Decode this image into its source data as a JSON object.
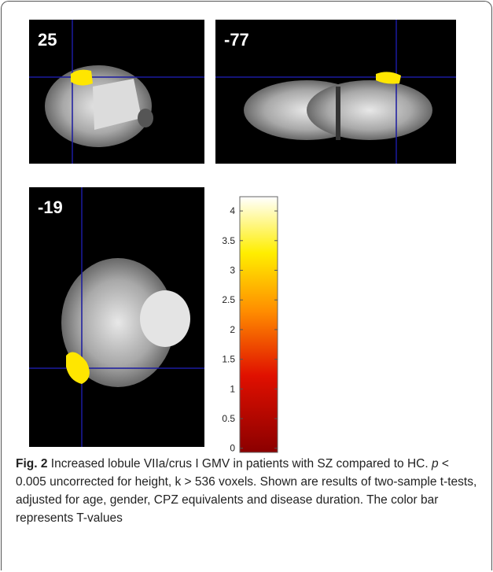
{
  "figure": {
    "panels": [
      {
        "label": "25"
      },
      {
        "label": "-77"
      },
      {
        "label": "-19"
      }
    ],
    "colorbar": {
      "lim": [
        -0.07,
        4.24
      ],
      "ticks": [
        0,
        0.5,
        1,
        1.5,
        2,
        2.5,
        3,
        3.5,
        4
      ]
    }
  },
  "caption": {
    "label": "Fig. 2",
    "text_before": "Increased lobule VIIa/crus I GMV in patients with SZ compared to HC.",
    "italic": "p",
    "text_after": "< 0.005 uncorrected for height, k > 536 voxels. Shown are results of two-sample t-tests, adjusted for age, gender, CPZ equivalents and disease duration. The color bar represents T-values"
  }
}
